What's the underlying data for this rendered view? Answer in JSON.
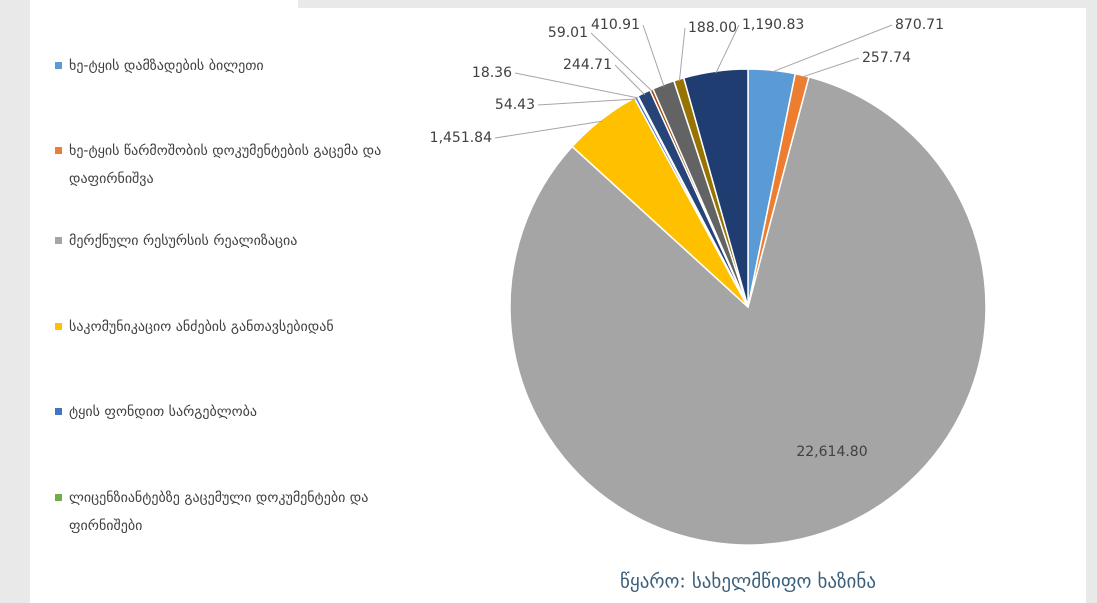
{
  "chart_data": {
    "type": "pie",
    "categories": [
      "ხე-ტყის დამზადების ბილეთი",
      "ხე-ტყის წარმოშობის დოკუმენტების გაცემა და დაფირნიშვა",
      "მერქნული რესურსის რეალიზაცია",
      "საკომუნიკაციო ანძების განთავსებიდან",
      "ტყის ფონდით სარგებლობა",
      "ლიცენზიანტებზე გაცემული დოკუმენტები და ფირნიშები",
      null,
      null,
      null,
      null,
      null
    ],
    "values": [
      870.71,
      257.74,
      22614.8,
      1451.84,
      54.43,
      18.36,
      244.71,
      59.01,
      410.91,
      188.0,
      1190.83
    ],
    "value_labels": [
      "870.71",
      "257.74",
      "22,614.80",
      "1,451.84",
      "54.43",
      "18.36",
      "244.71",
      "59.01",
      "410.91",
      "188.00",
      "1,190.83"
    ],
    "colors": [
      "#5b9bd5",
      "#ed7d31",
      "#a5a5a5",
      "#ffc000",
      "#4472c4",
      "#70ad47",
      "#264478",
      "#9e480e",
      "#636363",
      "#997300",
      "#203d72"
    ],
    "source": "წყარო: სახელმწიფო ხაზინა"
  }
}
